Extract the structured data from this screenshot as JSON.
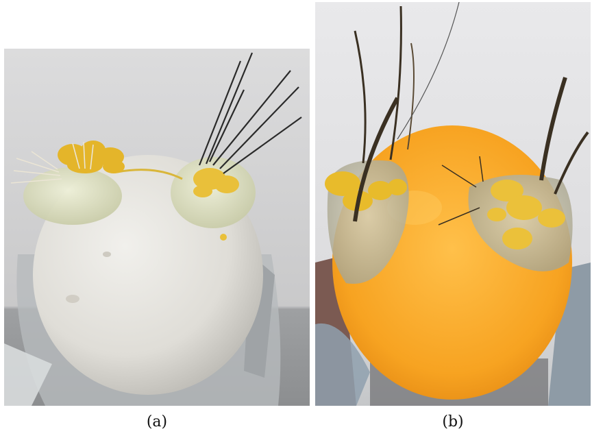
{
  "panels": [
    {
      "caption": "(a)",
      "subject": "white-sphere-with-whisker-sensors",
      "colors": {
        "sphere": "#e6e4df",
        "gel": "#dfe3c9",
        "adhesive": "#e5b92c",
        "whiskers_dark": "#2a2a2a",
        "whiskers_light": "#e9e4d6",
        "background": "#cfcfd0"
      }
    },
    {
      "caption": "(b)",
      "subject": "orange-sphere-with-whisker-sensors",
      "colors": {
        "sphere": "#f6a31f",
        "gel": "#c9c3a8",
        "adhesive": "#e7b928",
        "whiskers_dark": "#3a3022",
        "background": "#e2e2e4"
      }
    }
  ]
}
